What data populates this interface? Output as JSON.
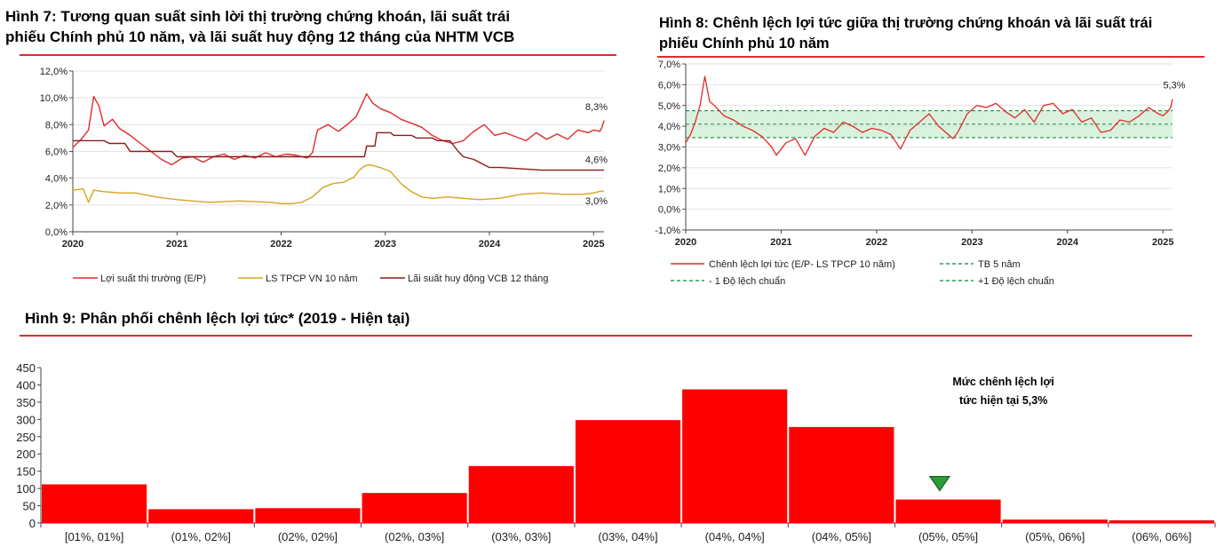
{
  "fig7": {
    "title": "Hình 7: Tương quan suất sinh lời thị trường chứng khoán, lãi suất trái phiếu Chính phủ 10 năm, và lãi suất huy động 12 tháng của NHTM VCB",
    "title_line1": "Hình 7: Tương quan suất sinh lời thị trường chứng khoán, lãi suất trái",
    "title_line2": "phiếu Chính phủ 10 năm, và lãi suất huy động 12 tháng của NHTM VCB",
    "colors": {
      "ep": "#e02b2b",
      "bond": "#d4a520",
      "deposit": "#8b1a1a"
    },
    "chart_data": {
      "type": "line",
      "title": "Tương quan suất sinh lời thị trường chứng khoán, lãi suất trái phiếu Chính phủ 10 năm, và lãi suất huy động 12 tháng của NHTM VCB",
      "x_range": [
        2020.0,
        2025.1
      ],
      "x_ticks": [
        2020,
        2021,
        2022,
        2023,
        2024,
        2025
      ],
      "x_tick_labels": [
        "2020",
        "2021",
        "2022",
        "2023",
        "2024",
        "2025"
      ],
      "y_range": [
        0,
        12
      ],
      "y_ticks": [
        0,
        2,
        4,
        6,
        8,
        10,
        12
      ],
      "y_tick_labels": [
        "0,0%",
        "2,0%",
        "4,0%",
        "6,0%",
        "8,0%",
        "10,0%",
        "12,0%"
      ],
      "series": [
        {
          "name": "Lợi suất thị trường (E/P)",
          "key": "ep",
          "x": [
            2020.0,
            2020.08,
            2020.15,
            2020.2,
            2020.25,
            2020.3,
            2020.38,
            2020.45,
            2020.55,
            2020.65,
            2020.75,
            2020.85,
            2020.95,
            2021.05,
            2021.15,
            2021.25,
            2021.35,
            2021.45,
            2021.55,
            2021.65,
            2021.75,
            2021.85,
            2021.95,
            2022.05,
            2022.15,
            2022.25,
            2022.3,
            2022.35,
            2022.45,
            2022.55,
            2022.65,
            2022.72,
            2022.78,
            2022.82,
            2022.88,
            2022.95,
            2023.05,
            2023.15,
            2023.25,
            2023.35,
            2023.45,
            2023.55,
            2023.65,
            2023.75,
            2023.85,
            2023.95,
            2024.05,
            2024.15,
            2024.25,
            2024.35,
            2024.45,
            2024.55,
            2024.65,
            2024.75,
            2024.85,
            2024.95,
            2025.0,
            2025.06,
            2025.08,
            2025.1
          ],
          "y": [
            6.3,
            6.9,
            7.6,
            10.1,
            9.4,
            7.9,
            8.4,
            7.7,
            7.2,
            6.6,
            6.0,
            5.4,
            5.0,
            5.5,
            5.6,
            5.2,
            5.6,
            5.8,
            5.4,
            5.7,
            5.5,
            5.9,
            5.6,
            5.8,
            5.7,
            5.5,
            5.9,
            7.6,
            8.0,
            7.5,
            8.1,
            8.6,
            9.6,
            10.3,
            9.6,
            9.2,
            8.9,
            8.4,
            8.1,
            7.8,
            7.2,
            6.8,
            6.6,
            6.8,
            7.5,
            8.0,
            7.2,
            7.4,
            7.1,
            6.8,
            7.4,
            6.9,
            7.3,
            6.9,
            7.6,
            7.4,
            7.6,
            7.5,
            7.8,
            8.3
          ],
          "end_label": "8,3%"
        },
        {
          "name": "LS TPCP VN 10 năm",
          "key": "bond",
          "x": [
            2020.0,
            2020.1,
            2020.15,
            2020.2,
            2020.3,
            2020.45,
            2020.6,
            2020.8,
            2021.0,
            2021.3,
            2021.6,
            2021.9,
            2022.0,
            2022.1,
            2022.2,
            2022.25,
            2022.3,
            2022.4,
            2022.5,
            2022.6,
            2022.7,
            2022.75,
            2022.8,
            2022.85,
            2022.95,
            2023.05,
            2023.15,
            2023.25,
            2023.35,
            2023.45,
            2023.6,
            2023.75,
            2023.9,
            2024.1,
            2024.3,
            2024.5,
            2024.7,
            2024.9,
            2025.0,
            2025.05,
            2025.08,
            2025.1
          ],
          "y": [
            3.1,
            3.2,
            2.2,
            3.1,
            3.0,
            2.9,
            2.9,
            2.6,
            2.4,
            2.2,
            2.3,
            2.2,
            2.1,
            2.1,
            2.2,
            2.4,
            2.6,
            3.3,
            3.6,
            3.7,
            4.1,
            4.6,
            4.9,
            5.0,
            4.8,
            4.5,
            3.6,
            3.0,
            2.6,
            2.5,
            2.6,
            2.5,
            2.4,
            2.5,
            2.8,
            2.9,
            2.8,
            2.8,
            2.9,
            3.0,
            3.05,
            3.0
          ],
          "end_label": "3,0%"
        },
        {
          "name": "Lãi suất huy động VCB 12 tháng",
          "key": "deposit",
          "x": [
            2020.0,
            2020.05,
            2020.3,
            2020.35,
            2020.5,
            2020.55,
            2020.95,
            2021.0,
            2022.0,
            2022.8,
            2022.82,
            2022.9,
            2022.92,
            2023.05,
            2023.08,
            2023.25,
            2023.3,
            2023.45,
            2023.5,
            2023.62,
            2023.7,
            2023.75,
            2023.85,
            2023.9,
            2024.0,
            2024.1,
            2024.3,
            2024.5,
            2024.7,
            2024.9,
            2025.1
          ],
          "y": [
            6.8,
            6.8,
            6.8,
            6.6,
            6.6,
            6.0,
            6.0,
            5.6,
            5.6,
            5.6,
            6.4,
            6.4,
            7.4,
            7.4,
            7.2,
            7.2,
            7.0,
            7.0,
            6.8,
            6.8,
            6.0,
            5.6,
            5.4,
            5.2,
            4.8,
            4.8,
            4.7,
            4.6,
            4.6,
            4.6,
            4.6
          ],
          "end_label": "4,6%"
        }
      ],
      "legend": "bottom"
    }
  },
  "fig8": {
    "title_line1": "Hình 8: Chênh lệch lợi tức giữa thị trường chứng khoán và lãi suất trái",
    "title_line2": "phiếu Chính phủ 10 năm",
    "colors": {
      "spread": "#e02b2b",
      "band": "#2e9e4f",
      "band_fill": "#d9f2de"
    },
    "chart_data": {
      "type": "line",
      "title": "Chênh lệch lợi tức giữa thị trường chứng khoán và lãi suất trái phiếu Chính phủ 10 năm",
      "x_range": [
        2020.0,
        2025.1
      ],
      "x_ticks": [
        2020,
        2021,
        2022,
        2023,
        2024,
        2025
      ],
      "x_tick_labels": [
        "2020",
        "2021",
        "2022",
        "2023",
        "2024",
        "2025"
      ],
      "y_range": [
        -1,
        7
      ],
      "y_ticks": [
        -1,
        0,
        1,
        2,
        3,
        4,
        5,
        6,
        7
      ],
      "y_tick_labels": [
        "-1,0%",
        "0,0%",
        "1,0%",
        "2,0%",
        "3,0%",
        "4,0%",
        "5,0%",
        "6,0%",
        "7,0%"
      ],
      "mean": 4.1,
      "minus_1sd": 3.45,
      "plus_1sd": 4.75,
      "series": [
        {
          "name": "Chênh lệch lợi tức (E/P- LS TPCP 10 năm)",
          "key": "spread",
          "x": [
            2020.0,
            2020.05,
            2020.1,
            2020.15,
            2020.2,
            2020.25,
            2020.3,
            2020.4,
            2020.5,
            2020.6,
            2020.7,
            2020.8,
            2020.9,
            2020.95,
            2021.05,
            2021.15,
            2021.25,
            2021.35,
            2021.45,
            2021.55,
            2021.65,
            2021.75,
            2021.85,
            2021.95,
            2022.05,
            2022.15,
            2022.25,
            2022.35,
            2022.45,
            2022.55,
            2022.65,
            2022.75,
            2022.8,
            2022.85,
            2022.95,
            2023.05,
            2023.15,
            2023.25,
            2023.35,
            2023.45,
            2023.55,
            2023.65,
            2023.75,
            2023.85,
            2023.95,
            2024.05,
            2024.15,
            2024.25,
            2024.35,
            2024.45,
            2024.55,
            2024.65,
            2024.75,
            2024.85,
            2024.95,
            2025.0,
            2025.05,
            2025.08,
            2025.1
          ],
          "y": [
            3.2,
            3.6,
            4.2,
            5.0,
            6.4,
            5.2,
            5.0,
            4.5,
            4.3,
            4.0,
            3.8,
            3.5,
            3.0,
            2.6,
            3.2,
            3.4,
            2.6,
            3.5,
            3.9,
            3.7,
            4.2,
            4.0,
            3.7,
            3.9,
            3.8,
            3.6,
            2.9,
            3.8,
            4.2,
            4.6,
            4.0,
            3.6,
            3.4,
            3.7,
            4.6,
            5.0,
            4.9,
            5.1,
            4.7,
            4.4,
            4.8,
            4.2,
            5.0,
            5.1,
            4.6,
            4.8,
            4.2,
            4.4,
            3.7,
            3.8,
            4.3,
            4.2,
            4.5,
            4.9,
            4.6,
            4.5,
            4.7,
            4.9,
            5.3
          ],
          "end_label": "5,3%"
        }
      ],
      "legend": [
        {
          "label": "Chênh lệch lợi tức (E/P- LS TPCP 10 năm)",
          "style": "solid-red"
        },
        {
          "label": "TB 5 năm",
          "style": "dashed-green"
        },
        {
          "label": "- 1 Độ lệch chuẩn",
          "style": "dashed-green"
        },
        {
          "label": "+1 Độ lệch chuẩn",
          "style": "dashed-green"
        }
      ]
    }
  },
  "fig9": {
    "title": "Hình 9: Phân phối chênh lệch lợi tức* (2019 - Hiện tại)",
    "colors": {
      "bar": "#ff0000",
      "marker": "#2a9d3a"
    },
    "chart_data": {
      "type": "bar",
      "title": "Phân phối chênh lệch lợi tức* (2019 - Hiện tại)",
      "categories": [
        "[01%, 01%]",
        "(01%, 02%]",
        "(02%, 02%]",
        "(02%, 03%]",
        "(03%, 03%]",
        "(03%, 04%]",
        "(04%, 04%]",
        "(04%, 05%]",
        "(05%, 05%]",
        "(05%, 06%]",
        "(06%, 06%]"
      ],
      "values": [
        112,
        40,
        43,
        87,
        165,
        298,
        387,
        278,
        68,
        10,
        8
      ],
      "ylim": [
        0,
        450
      ],
      "y_ticks": [
        0,
        50,
        100,
        150,
        200,
        250,
        300,
        350,
        400,
        450
      ],
      "y_tick_labels": [
        "0",
        "50",
        "100",
        "150",
        "200",
        "250",
        "300",
        "350",
        "400",
        "450"
      ],
      "annotation_line1": "Mức chênh lệch lợi",
      "annotation_line2": "tức hiện tại 5,3%",
      "marker_category": "(05%, 05%]"
    }
  }
}
